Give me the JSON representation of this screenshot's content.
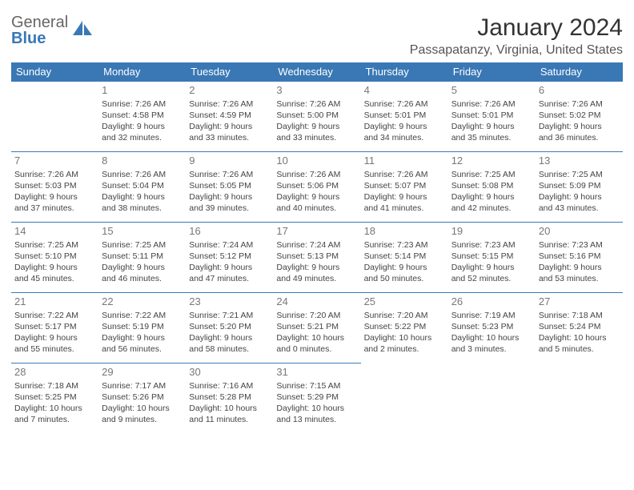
{
  "logo": {
    "line1": "General",
    "line2": "Blue"
  },
  "title": "January 2024",
  "location": "Passapatanzy, Virginia, United States",
  "colors": {
    "header_bg": "#3a78b5",
    "header_fg": "#ffffff",
    "border": "#3a78b5",
    "text": "#444444",
    "daynum": "#777777",
    "logo_gray": "#666666",
    "logo_blue": "#3a78b5"
  },
  "day_headers": [
    "Sunday",
    "Monday",
    "Tuesday",
    "Wednesday",
    "Thursday",
    "Friday",
    "Saturday"
  ],
  "weeks": [
    [
      null,
      {
        "n": "1",
        "sr": "Sunrise: 7:26 AM",
        "ss": "Sunset: 4:58 PM",
        "d1": "Daylight: 9 hours",
        "d2": "and 32 minutes."
      },
      {
        "n": "2",
        "sr": "Sunrise: 7:26 AM",
        "ss": "Sunset: 4:59 PM",
        "d1": "Daylight: 9 hours",
        "d2": "and 33 minutes."
      },
      {
        "n": "3",
        "sr": "Sunrise: 7:26 AM",
        "ss": "Sunset: 5:00 PM",
        "d1": "Daylight: 9 hours",
        "d2": "and 33 minutes."
      },
      {
        "n": "4",
        "sr": "Sunrise: 7:26 AM",
        "ss": "Sunset: 5:01 PM",
        "d1": "Daylight: 9 hours",
        "d2": "and 34 minutes."
      },
      {
        "n": "5",
        "sr": "Sunrise: 7:26 AM",
        "ss": "Sunset: 5:01 PM",
        "d1": "Daylight: 9 hours",
        "d2": "and 35 minutes."
      },
      {
        "n": "6",
        "sr": "Sunrise: 7:26 AM",
        "ss": "Sunset: 5:02 PM",
        "d1": "Daylight: 9 hours",
        "d2": "and 36 minutes."
      }
    ],
    [
      {
        "n": "7",
        "sr": "Sunrise: 7:26 AM",
        "ss": "Sunset: 5:03 PM",
        "d1": "Daylight: 9 hours",
        "d2": "and 37 minutes."
      },
      {
        "n": "8",
        "sr": "Sunrise: 7:26 AM",
        "ss": "Sunset: 5:04 PM",
        "d1": "Daylight: 9 hours",
        "d2": "and 38 minutes."
      },
      {
        "n": "9",
        "sr": "Sunrise: 7:26 AM",
        "ss": "Sunset: 5:05 PM",
        "d1": "Daylight: 9 hours",
        "d2": "and 39 minutes."
      },
      {
        "n": "10",
        "sr": "Sunrise: 7:26 AM",
        "ss": "Sunset: 5:06 PM",
        "d1": "Daylight: 9 hours",
        "d2": "and 40 minutes."
      },
      {
        "n": "11",
        "sr": "Sunrise: 7:26 AM",
        "ss": "Sunset: 5:07 PM",
        "d1": "Daylight: 9 hours",
        "d2": "and 41 minutes."
      },
      {
        "n": "12",
        "sr": "Sunrise: 7:25 AM",
        "ss": "Sunset: 5:08 PM",
        "d1": "Daylight: 9 hours",
        "d2": "and 42 minutes."
      },
      {
        "n": "13",
        "sr": "Sunrise: 7:25 AM",
        "ss": "Sunset: 5:09 PM",
        "d1": "Daylight: 9 hours",
        "d2": "and 43 minutes."
      }
    ],
    [
      {
        "n": "14",
        "sr": "Sunrise: 7:25 AM",
        "ss": "Sunset: 5:10 PM",
        "d1": "Daylight: 9 hours",
        "d2": "and 45 minutes."
      },
      {
        "n": "15",
        "sr": "Sunrise: 7:25 AM",
        "ss": "Sunset: 5:11 PM",
        "d1": "Daylight: 9 hours",
        "d2": "and 46 minutes."
      },
      {
        "n": "16",
        "sr": "Sunrise: 7:24 AM",
        "ss": "Sunset: 5:12 PM",
        "d1": "Daylight: 9 hours",
        "d2": "and 47 minutes."
      },
      {
        "n": "17",
        "sr": "Sunrise: 7:24 AM",
        "ss": "Sunset: 5:13 PM",
        "d1": "Daylight: 9 hours",
        "d2": "and 49 minutes."
      },
      {
        "n": "18",
        "sr": "Sunrise: 7:23 AM",
        "ss": "Sunset: 5:14 PM",
        "d1": "Daylight: 9 hours",
        "d2": "and 50 minutes."
      },
      {
        "n": "19",
        "sr": "Sunrise: 7:23 AM",
        "ss": "Sunset: 5:15 PM",
        "d1": "Daylight: 9 hours",
        "d2": "and 52 minutes."
      },
      {
        "n": "20",
        "sr": "Sunrise: 7:23 AM",
        "ss": "Sunset: 5:16 PM",
        "d1": "Daylight: 9 hours",
        "d2": "and 53 minutes."
      }
    ],
    [
      {
        "n": "21",
        "sr": "Sunrise: 7:22 AM",
        "ss": "Sunset: 5:17 PM",
        "d1": "Daylight: 9 hours",
        "d2": "and 55 minutes."
      },
      {
        "n": "22",
        "sr": "Sunrise: 7:22 AM",
        "ss": "Sunset: 5:19 PM",
        "d1": "Daylight: 9 hours",
        "d2": "and 56 minutes."
      },
      {
        "n": "23",
        "sr": "Sunrise: 7:21 AM",
        "ss": "Sunset: 5:20 PM",
        "d1": "Daylight: 9 hours",
        "d2": "and 58 minutes."
      },
      {
        "n": "24",
        "sr": "Sunrise: 7:20 AM",
        "ss": "Sunset: 5:21 PM",
        "d1": "Daylight: 10 hours",
        "d2": "and 0 minutes."
      },
      {
        "n": "25",
        "sr": "Sunrise: 7:20 AM",
        "ss": "Sunset: 5:22 PM",
        "d1": "Daylight: 10 hours",
        "d2": "and 2 minutes."
      },
      {
        "n": "26",
        "sr": "Sunrise: 7:19 AM",
        "ss": "Sunset: 5:23 PM",
        "d1": "Daylight: 10 hours",
        "d2": "and 3 minutes."
      },
      {
        "n": "27",
        "sr": "Sunrise: 7:18 AM",
        "ss": "Sunset: 5:24 PM",
        "d1": "Daylight: 10 hours",
        "d2": "and 5 minutes."
      }
    ],
    [
      {
        "n": "28",
        "sr": "Sunrise: 7:18 AM",
        "ss": "Sunset: 5:25 PM",
        "d1": "Daylight: 10 hours",
        "d2": "and 7 minutes."
      },
      {
        "n": "29",
        "sr": "Sunrise: 7:17 AM",
        "ss": "Sunset: 5:26 PM",
        "d1": "Daylight: 10 hours",
        "d2": "and 9 minutes."
      },
      {
        "n": "30",
        "sr": "Sunrise: 7:16 AM",
        "ss": "Sunset: 5:28 PM",
        "d1": "Daylight: 10 hours",
        "d2": "and 11 minutes."
      },
      {
        "n": "31",
        "sr": "Sunrise: 7:15 AM",
        "ss": "Sunset: 5:29 PM",
        "d1": "Daylight: 10 hours",
        "d2": "and 13 minutes."
      },
      null,
      null,
      null
    ]
  ]
}
